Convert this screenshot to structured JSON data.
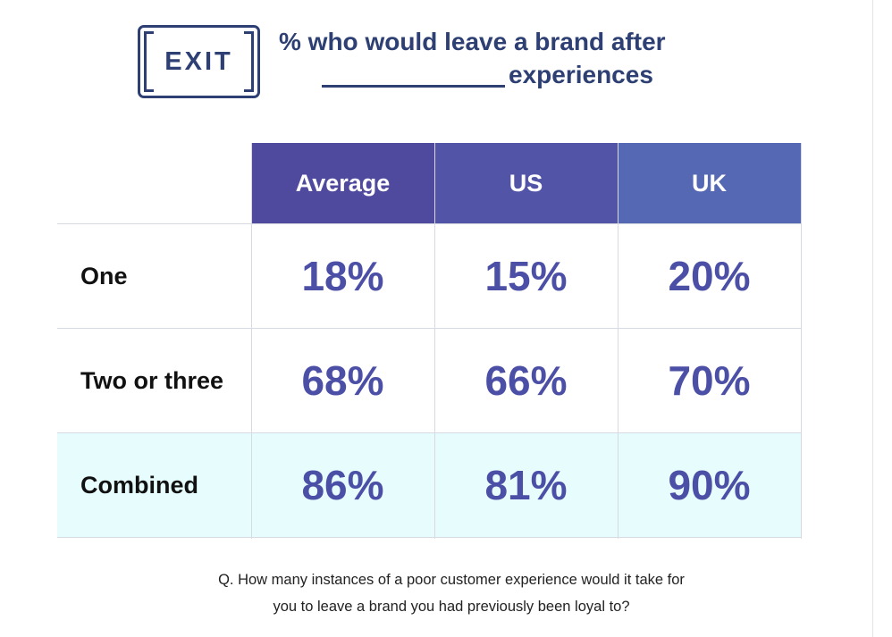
{
  "logo": {
    "text": "EXIT"
  },
  "heading": {
    "line1": "% who would leave a brand after",
    "line2": "experiences"
  },
  "chart_data": {
    "type": "table",
    "title": "% who would leave a brand after ____________ experiences",
    "columns": [
      "Average",
      "US",
      "UK"
    ],
    "column_colors": [
      "#4f4a9e",
      "#5254a8",
      "#5468b3"
    ],
    "rows": [
      {
        "label": "One",
        "values": [
          "18%",
          "15%",
          "20%"
        ]
      },
      {
        "label": "Two or three",
        "values": [
          "68%",
          "66%",
          "70%"
        ]
      },
      {
        "label": "Combined",
        "values": [
          "86%",
          "81%",
          "90%"
        ],
        "highlight": true
      }
    ],
    "value_color": "#4c4fa6",
    "highlight_color": "#e6fcfd"
  },
  "footnote": {
    "line1": "Q. How many instances of a poor customer experience would it take for",
    "line2": "you to leave a brand you had previously been loyal to?"
  }
}
